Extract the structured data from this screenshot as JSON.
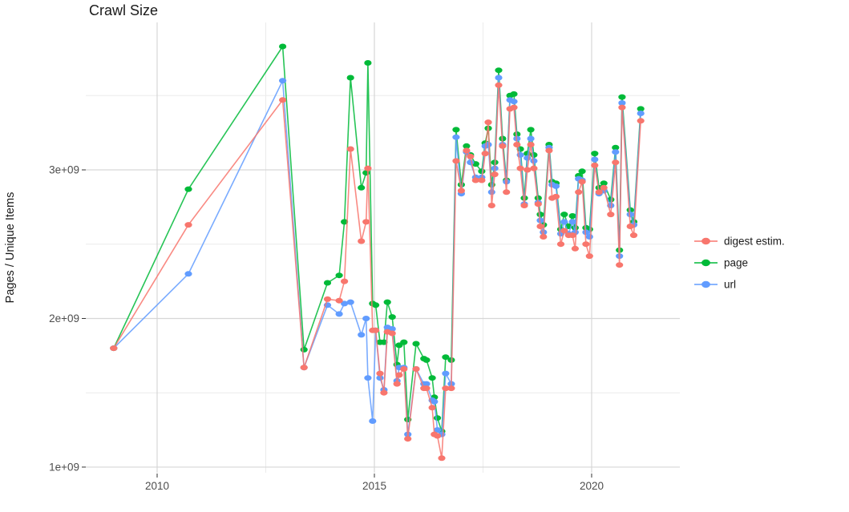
{
  "title": "Crawl Size",
  "axes": {
    "y_label": "Pages / Unique Items",
    "y_tick_labels": [
      "1e+09",
      "2e+09",
      "3e+09"
    ],
    "x_tick_labels": [
      "2010",
      "2015",
      "2020"
    ]
  },
  "legend": {
    "items": [
      {
        "id": "digest",
        "label": "digest estim.",
        "color": "#F8766D"
      },
      {
        "id": "page",
        "label": "page",
        "color": "#00BA38"
      },
      {
        "id": "url",
        "label": "url",
        "color": "#619CFF"
      }
    ]
  },
  "colors": {
    "digest": "#F8766D",
    "page": "#00BA38",
    "url": "#619CFF",
    "grid_major": "#d6d6d6",
    "grid_minor": "#ebebeb",
    "tick_label": "#4d4d4d",
    "tick_mark": "#333333",
    "text_dark": "#1a1a1a"
  },
  "chart_data": {
    "type": "line",
    "title": "Crawl Size",
    "xlabel": "",
    "ylabel": "Pages / Unique Items",
    "y_unit": "1e9 (billions of pages / unique items)",
    "xlim": [
      2008.358,
      2022.03
    ],
    "ylim": [
      0.962,
      3.992
    ],
    "x_ticks": [
      2010,
      2015,
      2020
    ],
    "x_minor_ticks": [
      2012.5,
      2017.5
    ],
    "y_ticks": [
      1,
      2,
      3
    ],
    "y_minor_ticks": [
      1.5,
      2.5,
      3.5
    ],
    "y_tick_labels": [
      "1e+09",
      "2e+09",
      "3e+09"
    ],
    "x_tick_labels": [
      "2010",
      "2015",
      "2020"
    ],
    "grid": "major+minor",
    "legend_position": "right",
    "x": [
      2009.0,
      2010.72,
      2012.89,
      2013.38,
      2013.92,
      2014.19,
      2014.31,
      2014.45,
      2014.7,
      2014.81,
      2014.85,
      2014.96,
      2015.03,
      2015.13,
      2015.22,
      2015.3,
      2015.41,
      2015.52,
      2015.57,
      2015.68,
      2015.77,
      2015.96,
      2016.14,
      2016.2,
      2016.33,
      2016.38,
      2016.45,
      2016.55,
      2016.64,
      2016.77,
      2016.88,
      2017.0,
      2017.12,
      2017.21,
      2017.33,
      2017.47,
      2017.55,
      2017.62,
      2017.7,
      2017.77,
      2017.86,
      2017.95,
      2018.04,
      2018.12,
      2018.21,
      2018.28,
      2018.36,
      2018.45,
      2018.52,
      2018.6,
      2018.67,
      2018.77,
      2018.82,
      2018.89,
      2019.02,
      2019.09,
      2019.18,
      2019.29,
      2019.37,
      2019.47,
      2019.56,
      2019.62,
      2019.7,
      2019.78,
      2019.87,
      2019.95,
      2020.07,
      2020.17,
      2020.28,
      2020.44,
      2020.55,
      2020.64,
      2020.7,
      2020.89,
      2020.97,
      2021.13
    ],
    "series": [
      {
        "name": "digest estim.",
        "color": "#F8766D",
        "values": [
          1.8,
          2.63,
          3.47,
          1.67,
          2.13,
          2.12,
          2.25,
          3.14,
          2.52,
          2.65,
          3.01,
          1.92,
          1.92,
          1.63,
          1.5,
          1.91,
          1.9,
          1.56,
          1.62,
          1.66,
          1.19,
          1.66,
          1.53,
          1.53,
          1.4,
          1.22,
          1.21,
          1.06,
          1.53,
          1.53,
          3.06,
          2.86,
          3.13,
          3.09,
          2.93,
          2.93,
          3.11,
          3.32,
          2.76,
          2.97,
          3.57,
          3.16,
          2.85,
          3.41,
          3.42,
          3.17,
          3.01,
          2.76,
          3.0,
          3.17,
          3.01,
          2.77,
          2.62,
          2.55,
          3.13,
          2.81,
          2.82,
          2.5,
          2.59,
          2.56,
          2.56,
          2.47,
          2.85,
          2.92,
          2.5,
          2.42,
          3.03,
          2.85,
          2.88,
          2.7,
          3.05,
          2.36,
          3.42,
          2.62,
          2.56,
          3.33
        ]
      },
      {
        "name": "page",
        "color": "#00BA38",
        "values": [
          1.8,
          2.87,
          3.83,
          1.79,
          2.24,
          2.29,
          2.65,
          3.62,
          2.88,
          2.98,
          3.72,
          2.1,
          2.09,
          1.84,
          1.84,
          2.11,
          2.01,
          1.69,
          1.82,
          1.84,
          1.32,
          1.83,
          1.73,
          1.72,
          1.6,
          1.47,
          1.33,
          1.24,
          1.74,
          1.72,
          3.27,
          2.9,
          3.16,
          3.1,
          3.04,
          2.99,
          3.18,
          3.28,
          2.9,
          3.05,
          3.67,
          3.21,
          2.93,
          3.5,
          3.51,
          3.24,
          3.14,
          2.81,
          3.11,
          3.27,
          3.1,
          2.81,
          2.7,
          2.63,
          3.17,
          2.92,
          2.91,
          2.6,
          2.7,
          2.62,
          2.69,
          2.61,
          2.96,
          2.99,
          2.61,
          2.6,
          3.11,
          2.88,
          2.91,
          2.8,
          3.15,
          2.46,
          3.49,
          2.73,
          2.65,
          3.41
        ]
      },
      {
        "name": "url",
        "color": "#619CFF",
        "values": [
          1.8,
          2.3,
          3.6,
          1.67,
          2.09,
          2.03,
          2.1,
          2.11,
          1.89,
          2.0,
          1.6,
          1.31,
          1.92,
          1.6,
          1.52,
          1.94,
          1.93,
          1.58,
          1.67,
          1.67,
          1.22,
          1.66,
          1.56,
          1.56,
          1.45,
          1.44,
          1.25,
          1.22,
          1.63,
          1.56,
          3.22,
          2.84,
          3.12,
          3.05,
          2.95,
          2.95,
          3.16,
          3.17,
          2.85,
          3.01,
          3.62,
          3.17,
          2.92,
          3.47,
          3.46,
          3.21,
          3.1,
          2.77,
          3.08,
          3.21,
          3.06,
          2.78,
          2.66,
          2.58,
          3.15,
          2.9,
          2.89,
          2.57,
          2.65,
          2.57,
          2.65,
          2.58,
          2.94,
          2.93,
          2.58,
          2.55,
          3.07,
          2.84,
          2.86,
          2.76,
          3.12,
          2.42,
          3.45,
          2.7,
          2.63,
          3.38
        ]
      }
    ]
  }
}
